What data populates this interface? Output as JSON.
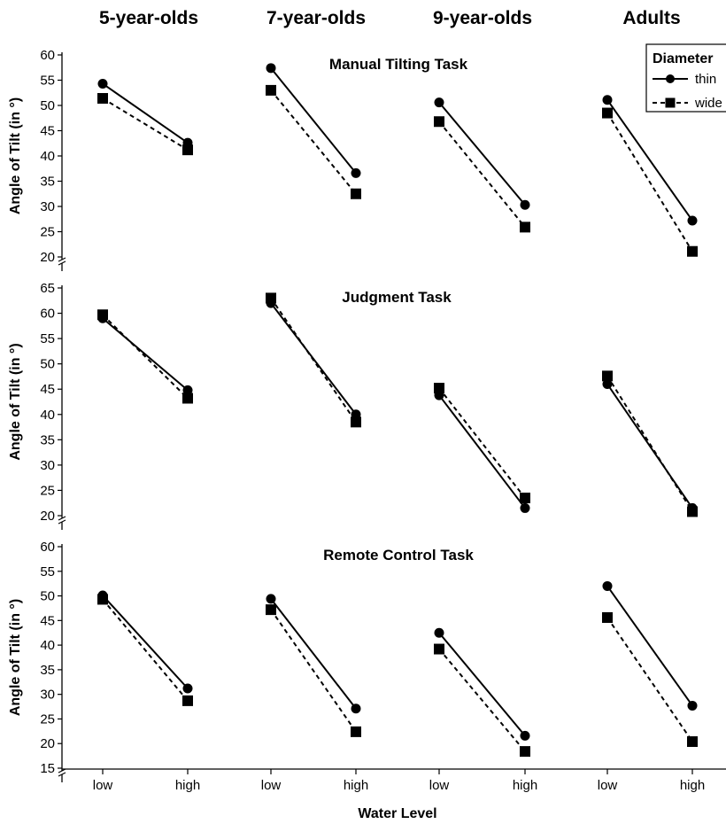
{
  "chart_data": {
    "type": "line",
    "column_titles": [
      "5-year-olds",
      "7-year-olds",
      "9-year-olds",
      "Adults"
    ],
    "categories": [
      "low",
      "high"
    ],
    "xlabel": "Water Level",
    "ylabel": "Angle of Tilt (in °)",
    "legend": {
      "title": "Diameter",
      "placement": "top-right",
      "entries": [
        {
          "label": "thin",
          "marker": "circle",
          "line": "solid"
        },
        {
          "label": "wide",
          "marker": "square",
          "line": "dashed"
        }
      ]
    },
    "panels": [
      {
        "title": "Manual Tilting Task",
        "ylim": [
          20,
          60
        ],
        "yticks": [
          20,
          25,
          30,
          35,
          40,
          45,
          50,
          55,
          60
        ],
        "groups": [
          {
            "group": "5-year-olds",
            "series": [
              {
                "name": "thin",
                "values": [
                  54.3,
                  42.6
                ]
              },
              {
                "name": "wide",
                "values": [
                  51.4,
                  41.2
                ]
              }
            ]
          },
          {
            "group": "7-year-olds",
            "series": [
              {
                "name": "thin",
                "values": [
                  57.4,
                  36.6
                ]
              },
              {
                "name": "wide",
                "values": [
                  53.0,
                  32.5
                ]
              }
            ]
          },
          {
            "group": "9-year-olds",
            "series": [
              {
                "name": "thin",
                "values": [
                  50.6,
                  30.3
                ]
              },
              {
                "name": "wide",
                "values": [
                  46.8,
                  25.9
                ]
              }
            ]
          },
          {
            "group": "Adults",
            "series": [
              {
                "name": "thin",
                "values": [
                  51.1,
                  27.2
                ]
              },
              {
                "name": "wide",
                "values": [
                  48.5,
                  21.1
                ]
              }
            ]
          }
        ]
      },
      {
        "title": "Judgment Task",
        "ylim": [
          20,
          65
        ],
        "yticks": [
          20,
          25,
          30,
          35,
          40,
          45,
          50,
          55,
          60,
          65
        ],
        "groups": [
          {
            "group": "5-year-olds",
            "series": [
              {
                "name": "thin",
                "values": [
                  59.0,
                  44.8
                ]
              },
              {
                "name": "wide",
                "values": [
                  59.7,
                  43.2
                ]
              }
            ]
          },
          {
            "group": "7-year-olds",
            "series": [
              {
                "name": "thin",
                "values": [
                  62.0,
                  40.0
                ]
              },
              {
                "name": "wide",
                "values": [
                  63.0,
                  38.5
                ]
              }
            ]
          },
          {
            "group": "9-year-olds",
            "series": [
              {
                "name": "thin",
                "values": [
                  43.8,
                  21.5
                ]
              },
              {
                "name": "wide",
                "values": [
                  45.2,
                  23.5
                ]
              }
            ]
          },
          {
            "group": "Adults",
            "series": [
              {
                "name": "thin",
                "values": [
                  46.0,
                  21.5
                ]
              },
              {
                "name": "wide",
                "values": [
                  47.6,
                  20.8
                ]
              }
            ]
          }
        ]
      },
      {
        "title": "Remote Control Task",
        "ylim": [
          15,
          60
        ],
        "yticks": [
          15,
          20,
          25,
          30,
          35,
          40,
          45,
          50,
          55,
          60
        ],
        "groups": [
          {
            "group": "5-year-olds",
            "series": [
              {
                "name": "thin",
                "values": [
                  50.1,
                  31.2
                ]
              },
              {
                "name": "wide",
                "values": [
                  49.3,
                  28.7
                ]
              }
            ]
          },
          {
            "group": "7-year-olds",
            "series": [
              {
                "name": "thin",
                "values": [
                  49.4,
                  27.1
                ]
              },
              {
                "name": "wide",
                "values": [
                  47.2,
                  22.4
                ]
              }
            ]
          },
          {
            "group": "9-year-olds",
            "series": [
              {
                "name": "thin",
                "values": [
                  42.5,
                  21.6
                ]
              },
              {
                "name": "wide",
                "values": [
                  39.2,
                  18.4
                ]
              }
            ]
          },
          {
            "group": "Adults",
            "series": [
              {
                "name": "thin",
                "values": [
                  52.0,
                  27.7
                ]
              },
              {
                "name": "wide",
                "values": [
                  45.6,
                  20.4
                ]
              }
            ]
          }
        ]
      }
    ]
  }
}
